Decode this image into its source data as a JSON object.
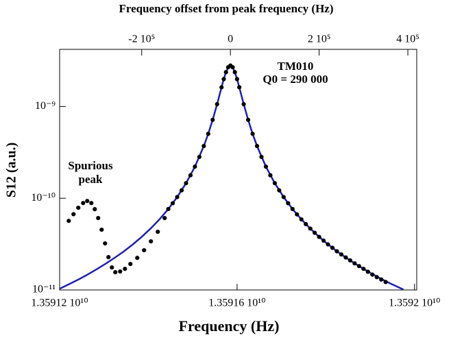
{
  "chart_data": {
    "type": "scatter",
    "x2label": "Frequency offset from peak frequency (Hz)",
    "xlabel": "Frequency (Hz)",
    "ylabel": "S12 (a.u.)",
    "annotations": [
      "TM010",
      "Q0 = 290 000",
      "Spurious",
      "peak"
    ],
    "xlim": [
      13591200000,
      13592005000
    ],
    "xticks": [
      {
        "value": 13591200000,
        "label": "1.35912 10¹⁰"
      },
      {
        "value": 13591600000,
        "label": "1.35916 10¹⁰"
      },
      {
        "value": 13592000000,
        "label": "1.3592 10¹⁰"
      }
    ],
    "x2lim": [
      -385000,
      420000
    ],
    "x2ticks": [
      {
        "value": -200000,
        "label": "-2 10⁵"
      },
      0,
      {
        "value": 200000,
        "label": "2 10⁵"
      },
      {
        "value": 400000,
        "label": "4 10⁵"
      }
    ],
    "ylim": [
      1e-11,
      4.2e-09
    ],
    "yticks": [
      {
        "value": 1e-11,
        "label": "10⁻¹¹"
      },
      {
        "value": 1e-10,
        "label": "10⁻¹⁰"
      },
      {
        "value": 1e-09,
        "label": "10⁻⁹"
      }
    ],
    "log_y": true,
    "series": [
      {
        "type": "line",
        "color": "#1f1fb0",
        "x": [
          13591200000,
          13591225000,
          13591245000,
          13591265000,
          13591285000,
          13591305000,
          13591325000,
          13591345000,
          13591365000,
          13591385000,
          13591405000,
          13591425000,
          13591445000,
          13591465000,
          13591485000,
          13591505000,
          13591525000,
          13591535000,
          13591545000,
          13591555000,
          13591565000,
          13591570000,
          13591575000,
          13591580000,
          13591585000,
          13591590000,
          13591595000,
          13591600000,
          13591605000,
          13591615000,
          13591625000,
          13591635000,
          13591645000,
          13591665000,
          13591685000,
          13591705000,
          13591725000,
          13591745000,
          13591765000,
          13591785000,
          13591805000,
          13591825000,
          13591845000,
          13591865000,
          13591885000,
          13591905000,
          13591925000,
          13591945000,
          13591975000
        ],
        "values": [
          1.03e-11,
          1.18e-11,
          1.32e-11,
          1.49e-11,
          1.7e-11,
          1.95e-11,
          2.26e-11,
          2.64e-11,
          3.14e-11,
          3.79e-11,
          4.67e-11,
          5.88e-11,
          7.63e-11,
          1.03e-10,
          1.46e-10,
          2.21e-10,
          3.71e-10,
          5.04e-10,
          7.16e-10,
          1.06e-09,
          1.62e-09,
          1.99e-09,
          2.37e-09,
          2.68e-09,
          2.8e-09,
          2.68e-09,
          2.37e-09,
          1.99e-09,
          1.62e-09,
          1.06e-09,
          7.16e-10,
          5.04e-10,
          3.71e-10,
          2.21e-10,
          1.46e-10,
          1.03e-10,
          7.63e-11,
          5.88e-11,
          4.67e-11,
          3.79e-11,
          3.14e-11,
          2.64e-11,
          2.26e-11,
          1.95e-11,
          1.7e-11,
          1.49e-11,
          1.32e-11,
          1.18e-11,
          1.01e-11
        ]
      },
      {
        "type": "scatter",
        "color": "#000000",
        "x": [
          13591220500,
          13591231300,
          13591242100,
          13591253000,
          13591262200,
          13591271500,
          13591279200,
          13591286900,
          13591294700,
          13591302400,
          13591310100,
          13591317800,
          13591325500,
          13591336400,
          13591347200,
          13591359500,
          13591375000,
          13591390400,
          13591405800,
          13591421300,
          13591436700,
          13591445000,
          13591455000,
          13591465000,
          13591475000,
          13591485000,
          13591495000,
          13591505000,
          13591515000,
          13591525000,
          13591535000,
          13591545000,
          13591555000,
          13591565000,
          13591570000,
          13591575000,
          13591580000,
          13591585000,
          13591590000,
          13591595000,
          13591600000,
          13591605000,
          13591615000,
          13591625000,
          13591635000,
          13591645000,
          13591655000,
          13591665000,
          13591675000,
          13591685000,
          13591695000,
          13591705000,
          13591715000,
          13591725000,
          13591735000,
          13591745000,
          13591755000,
          13591765000,
          13591775000,
          13591785000,
          13591795000,
          13591805000,
          13591815000,
          13591825000,
          13591835000,
          13591845000,
          13591855000,
          13591865000,
          13591875000,
          13591885000,
          13591895000,
          13591905000,
          13591915000,
          13591925000,
          13591935000
        ],
        "values": [
          5.67e-11,
          6.7e-11,
          7.87e-11,
          8.87e-11,
          9.34e-11,
          8.87e-11,
          7.6e-11,
          6.08e-11,
          4.54e-11,
          3.22e-11,
          2.28e-11,
          1.76e-11,
          1.56e-11,
          1.59e-11,
          1.7e-11,
          1.92e-11,
          2.24e-11,
          2.71e-11,
          3.39e-11,
          4.31e-11,
          6.08e-11,
          7.63e-11,
          8.83e-11,
          1.03e-10,
          1.22e-10,
          1.46e-10,
          1.78e-10,
          2.21e-10,
          2.82e-10,
          3.71e-10,
          5.04e-10,
          7.16e-10,
          1.06e-09,
          1.62e-09,
          1.99e-09,
          2.37e-09,
          2.68e-09,
          2.8e-09,
          2.68e-09,
          2.37e-09,
          1.99e-09,
          1.62e-09,
          1.06e-09,
          7.16e-10,
          5.04e-10,
          3.71e-10,
          2.82e-10,
          2.21e-10,
          1.78e-10,
          1.46e-10,
          1.22e-10,
          1.03e-10,
          8.83e-11,
          7.63e-11,
          6.67e-11,
          5.88e-11,
          5.22e-11,
          4.67e-11,
          4.2e-11,
          3.79e-11,
          3.45e-11,
          3.14e-11,
          2.88e-11,
          2.64e-11,
          2.44e-11,
          2.26e-11,
          2.1e-11,
          1.95e-11,
          1.82e-11,
          1.7e-11,
          1.58e-11,
          1.47e-11,
          1.38e-11,
          1.3e-11,
          1.22e-11
        ]
      }
    ]
  }
}
